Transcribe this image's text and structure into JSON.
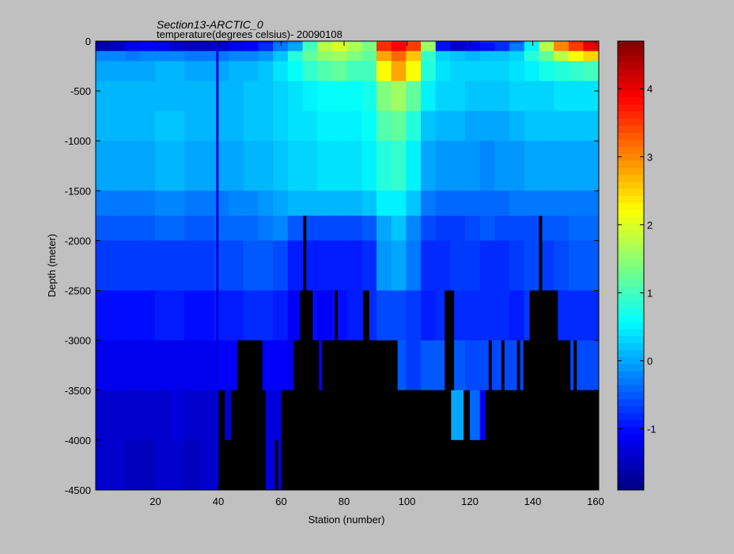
{
  "chart_data": {
    "type": "heatmap",
    "title": "Section13-ARCTIC_0",
    "subtitle": "temperature(degrees  celsius)- 20090108",
    "xlabel": "Station (number)",
    "ylabel": "Depth (meter)",
    "xlim": [
      1,
      161
    ],
    "ylim": [
      -4500,
      0
    ],
    "x_ticks": [
      20,
      40,
      60,
      80,
      100,
      120,
      140,
      160
    ],
    "y_ticks": [
      0,
      -500,
      -1000,
      -1500,
      -2000,
      -2500,
      -3000,
      -3500,
      -4000,
      -4500
    ],
    "colorbar": {
      "colormap": "jet",
      "clim": [
        -1.9,
        4.7
      ],
      "ticks": [
        -1,
        0,
        1,
        2,
        3,
        4
      ]
    },
    "land_color": "#000000",
    "layers": [
      {
        "depth": [
          -20,
          0
        ],
        "temp": [
          -1.7,
          -1.5,
          -1.3,
          -1.2,
          -1.3,
          -1.5,
          -1.6,
          -1.6,
          -1.5,
          -1.3,
          -1.2,
          -1.0,
          -0.5,
          -0.2,
          0.8,
          1.5,
          1.8,
          1.6,
          1.2,
          3.5,
          3.8,
          3.4,
          1.5,
          -1.0,
          -1.3,
          -1.0,
          -0.8,
          -0.8,
          -0.6,
          0.5,
          1.5,
          3.0,
          3.6,
          4.2
        ]
      },
      {
        "depth": [
          -100,
          -20
        ],
        "temp": [
          -1.6,
          -1.5,
          -1.2,
          -1.1,
          -1.2,
          -1.4,
          -1.5,
          -1.5,
          -1.4,
          -1.2,
          -1.1,
          -0.8,
          -0.3,
          0.0,
          1.0,
          1.8,
          2.0,
          1.7,
          1.4,
          3.6,
          3.9,
          3.5,
          1.6,
          -1.0,
          -1.4,
          -1.2,
          -1.0,
          -0.8,
          -0.3,
          0.5,
          1.8,
          3.0,
          3.5,
          4.0
        ]
      },
      {
        "depth": [
          -200,
          -100
        ],
        "temp": [
          -0.2,
          -0.2,
          -0.3,
          -0.2,
          -0.2,
          -0.2,
          -0.3,
          -0.3,
          -0.3,
          -0.2,
          -0.2,
          -0.1,
          0.2,
          0.8,
          1.2,
          1.5,
          1.6,
          1.4,
          1.2,
          2.8,
          3.2,
          2.6,
          0.9,
          0.3,
          0.2,
          0.1,
          0.2,
          0.2,
          0.3,
          0.8,
          1.2,
          1.8,
          2.2,
          2.5
        ]
      },
      {
        "depth": [
          -400,
          -200
        ],
        "temp": [
          0.0,
          0.0,
          0.0,
          0.0,
          0.1,
          0.1,
          0.0,
          0.0,
          0.0,
          0.1,
          0.1,
          0.2,
          0.4,
          0.6,
          0.9,
          1.1,
          1.2,
          1.0,
          1.0,
          2.2,
          2.8,
          2.2,
          0.8,
          0.4,
          0.3,
          0.3,
          0.3,
          0.3,
          0.4,
          0.5,
          0.7,
          0.8,
          0.9,
          1.0
        ]
      },
      {
        "depth": [
          -700,
          -400
        ],
        "temp": [
          0.1,
          0.1,
          0.1,
          0.1,
          0.1,
          0.1,
          0.1,
          0.1,
          0.1,
          0.1,
          0.2,
          0.2,
          0.3,
          0.4,
          0.5,
          0.6,
          0.6,
          0.6,
          0.7,
          1.4,
          1.6,
          1.2,
          0.5,
          0.3,
          0.3,
          0.2,
          0.2,
          0.2,
          0.3,
          0.3,
          0.3,
          0.4,
          0.4,
          0.4
        ]
      },
      {
        "depth": [
          -1000,
          -700
        ],
        "temp": [
          0.1,
          0.1,
          0.1,
          0.1,
          0.2,
          0.2,
          0.1,
          0.1,
          0.1,
          0.1,
          0.2,
          0.2,
          0.3,
          0.4,
          0.4,
          0.5,
          0.5,
          0.5,
          0.6,
          1.1,
          1.2,
          0.8,
          0.2,
          0.1,
          0.1,
          0.0,
          0.0,
          0.0,
          0.1,
          0.2,
          0.2,
          0.2,
          0.2,
          0.2
        ]
      },
      {
        "depth": [
          -1500,
          -1000
        ],
        "temp": [
          0.0,
          0.0,
          0.0,
          0.0,
          0.1,
          0.1,
          0.0,
          0.0,
          0.0,
          0.0,
          0.1,
          0.1,
          0.2,
          0.3,
          0.3,
          0.4,
          0.4,
          0.4,
          0.5,
          0.8,
          0.9,
          0.5,
          0.0,
          -0.1,
          -0.1,
          -0.1,
          -0.2,
          -0.1,
          -0.1,
          0.0,
          0.0,
          0.0,
          0.0,
          0.0
        ]
      },
      {
        "depth": [
          -1750,
          -1500
        ],
        "temp": [
          -0.3,
          -0.3,
          -0.3,
          -0.3,
          -0.2,
          -0.2,
          -0.3,
          -0.3,
          -0.3,
          -0.2,
          -0.2,
          -0.1,
          0.0,
          0.1,
          0.1,
          0.1,
          0.1,
          0.1,
          0.2,
          0.5,
          0.5,
          0.2,
          -0.3,
          -0.4,
          -0.4,
          -0.4,
          -0.4,
          -0.4,
          -0.3,
          -0.3,
          -0.3,
          -0.3,
          -0.3,
          -0.3
        ]
      },
      {
        "depth": [
          -2000,
          -1750
        ],
        "temp": [
          -0.5,
          -0.5,
          -0.5,
          -0.5,
          -0.4,
          -0.4,
          -0.5,
          -0.5,
          -0.4,
          -0.4,
          -0.4,
          -0.3,
          -0.2,
          -0.5,
          -0.6,
          -0.6,
          -0.6,
          -0.6,
          -0.5,
          0.0,
          0.2,
          -0.2,
          -0.6,
          -0.7,
          -0.7,
          -0.6,
          -0.5,
          -0.6,
          -0.6,
          -0.6,
          -0.5,
          -0.5,
          -0.4,
          -0.4
        ]
      },
      {
        "depth": [
          -2500,
          -2000
        ],
        "temp": [
          -0.7,
          -0.7,
          -0.7,
          -0.7,
          -0.7,
          -0.7,
          -0.7,
          -0.7,
          -0.6,
          -0.6,
          -0.5,
          -0.5,
          -0.6,
          -0.9,
          -0.9,
          -0.9,
          -0.9,
          -0.9,
          -0.8,
          -0.1,
          0.0,
          -0.3,
          -0.8,
          -0.8,
          -0.7,
          -0.7,
          -0.8,
          -0.8,
          -0.7,
          -0.6,
          -0.7,
          -0.6,
          -0.5,
          -0.5
        ]
      },
      {
        "depth": [
          -3000,
          -2500
        ],
        "temp": [
          -1.0,
          -1.0,
          -1.0,
          -1.0,
          -0.9,
          -0.9,
          -1.0,
          -1.0,
          -0.9,
          -0.9,
          -0.8,
          -0.8,
          -0.9,
          -1.1,
          -1.0,
          -1.1,
          -1.0,
          -0.9,
          -0.8,
          -0.6,
          -0.6,
          -0.7,
          -0.9,
          -0.8,
          -0.8,
          -0.8,
          -0.8,
          -0.8,
          -0.9,
          -0.7,
          -0.8,
          -0.8,
          -0.8,
          -0.8
        ]
      },
      {
        "depth": [
          -3500,
          -3000
        ],
        "temp": [
          -1.2,
          -1.2,
          -1.2,
          -1.2,
          -1.2,
          -1.2,
          -1.2,
          -1.2,
          -1.1,
          -1.1,
          -1.1,
          -1.1,
          -1.1,
          -1.2,
          -1.1,
          -1.1,
          -1.1,
          -1.0,
          -1.0,
          -0.6,
          -0.5,
          -0.7,
          -0.5,
          -0.5,
          -0.5,
          -0.6,
          -0.6,
          -0.6,
          -0.6,
          -0.6,
          -0.5,
          -0.6,
          -0.6,
          -0.6
        ]
      },
      {
        "depth": [
          -4000,
          -3500
        ],
        "temp": [
          -1.4,
          -1.4,
          -1.4,
          -1.4,
          -1.4,
          -1.3,
          -1.4,
          -1.4,
          -1.4,
          -1.3,
          -1.3,
          -1.3,
          -1.3,
          -1.3,
          -1.3,
          -1.3,
          -1.3,
          -1.3,
          -1.3,
          -1.2,
          -1.2,
          -1.2,
          -1.2,
          -1.2,
          0.0,
          -0.4,
          -1.2,
          -1.2,
          -1.2,
          -1.2,
          -1.2,
          -1.2,
          -1.2,
          -1.2
        ]
      },
      {
        "depth": [
          -4500,
          -4000
        ],
        "temp": [
          -1.4,
          -1.4,
          -1.5,
          -1.5,
          -1.4,
          -1.4,
          -1.5,
          -1.4,
          -1.4,
          -1.4,
          -1.3,
          -1.3,
          -1.3,
          -1.3,
          -1.3,
          -1.3,
          -1.3,
          -1.3,
          -1.3,
          -1.3,
          -1.3,
          -1.3,
          -1.3,
          -1.3,
          -1.3,
          -1.3,
          -1.3,
          -1.3,
          -1.3,
          -1.3,
          -1.3,
          -1.3,
          -1.3,
          -1.3
        ]
      }
    ],
    "station_columns": [
      1,
      5.7,
      10.4,
      15.1,
      19.8,
      24.5,
      29.2,
      33.9,
      38.6,
      43.3,
      48,
      52.7,
      57.4,
      62.1,
      66.8,
      71.5,
      76.2,
      80.9,
      85.6,
      90.3,
      95,
      99.7,
      104.4,
      109.1,
      113.8,
      118.5,
      123.2,
      127.9,
      132.6,
      137.3,
      142,
      146.7,
      151.4,
      156.1,
      161
    ],
    "bathymetry": [
      [
        1,
        -4500
      ],
      [
        40,
        -4500
      ],
      [
        40,
        -3500
      ],
      [
        42,
        -3500
      ],
      [
        42,
        -4000
      ],
      [
        44,
        -4000
      ],
      [
        44,
        -3500
      ],
      [
        46,
        -3500
      ],
      [
        46,
        -3000
      ],
      [
        54,
        -3000
      ],
      [
        54,
        -3500
      ],
      [
        55,
        -3500
      ],
      [
        55,
        -4500
      ],
      [
        58,
        -4500
      ],
      [
        58,
        -4000
      ],
      [
        59,
        -4000
      ],
      [
        59,
        -4500
      ],
      [
        60,
        -4500
      ],
      [
        60,
        -3500
      ],
      [
        64,
        -3500
      ],
      [
        64,
        -3000
      ],
      [
        66,
        -3000
      ],
      [
        66,
        -2500
      ],
      [
        67,
        -2500
      ],
      [
        67,
        -1750
      ],
      [
        68,
        -1750
      ],
      [
        68,
        -2500
      ],
      [
        70,
        -2500
      ],
      [
        70,
        -3000
      ],
      [
        72,
        -3000
      ],
      [
        72,
        -3500
      ],
      [
        73,
        -3500
      ],
      [
        73,
        -3000
      ],
      [
        77,
        -3000
      ],
      [
        77,
        -2500
      ],
      [
        78,
        -2500
      ],
      [
        78,
        -3000
      ],
      [
        86,
        -3000
      ],
      [
        86,
        -2500
      ],
      [
        88,
        -2500
      ],
      [
        88,
        -3000
      ],
      [
        97,
        -3000
      ],
      [
        97,
        -3500
      ],
      [
        114,
        -3500
      ],
      [
        114,
        -4000
      ],
      [
        118,
        -4000
      ],
      [
        118,
        -3500
      ],
      [
        120,
        -3500
      ],
      [
        120,
        -4000
      ],
      [
        125,
        -4000
      ],
      [
        125,
        -3500
      ],
      [
        126,
        -3500
      ],
      [
        126,
        -3000
      ],
      [
        127,
        -3000
      ],
      [
        127,
        -3500
      ],
      [
        130,
        -3500
      ],
      [
        130,
        -3000
      ],
      [
        131,
        -3000
      ],
      [
        131,
        -3500
      ],
      [
        135,
        -3500
      ],
      [
        135,
        -3000
      ],
      [
        136,
        -3000
      ],
      [
        136,
        -3500
      ],
      [
        137,
        -3500
      ],
      [
        137,
        -3000
      ],
      [
        139,
        -3000
      ],
      [
        139,
        -2500
      ],
      [
        142,
        -2500
      ],
      [
        142,
        -1750
      ],
      [
        143,
        -1750
      ],
      [
        143,
        -2500
      ],
      [
        148,
        -2500
      ],
      [
        148,
        -3000
      ],
      [
        152,
        -3000
      ],
      [
        152,
        -3500
      ],
      [
        153,
        -3500
      ],
      [
        153,
        -3000
      ],
      [
        154,
        -3000
      ],
      [
        154,
        -3500
      ],
      [
        161,
        -3500
      ],
      [
        161,
        -4500
      ]
    ],
    "bathymetry_extra": [
      [
        [
          112,
          -2500
        ],
        [
          115,
          -2500
        ],
        [
          115,
          -3500
        ],
        [
          112,
          -3500
        ]
      ],
      [
        [
          113,
          -3500
        ],
        [
          114,
          -3500
        ],
        [
          114,
          -4000
        ],
        [
          113,
          -4000
        ]
      ]
    ]
  }
}
